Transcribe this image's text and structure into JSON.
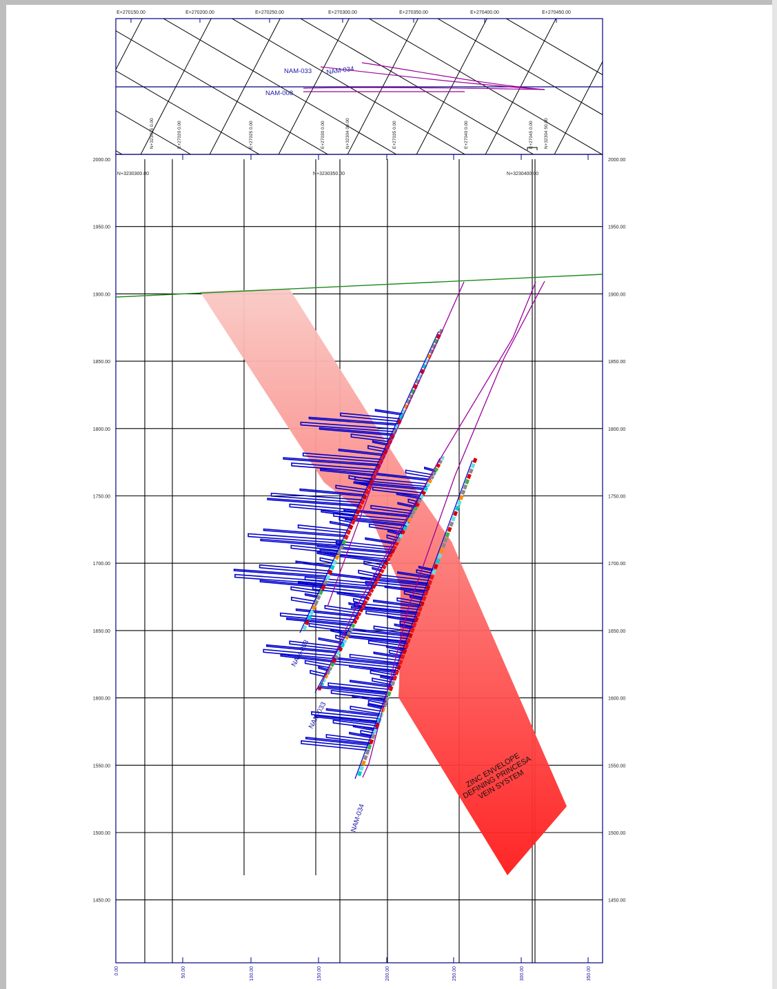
{
  "plan_view": {
    "easting_labels": [
      "E+270150.00",
      "E+270200.00",
      "E+270250.00",
      "E+270300.00",
      "E+270350.00",
      "E+270400.00",
      "E+270450.00"
    ],
    "grid_labels": [
      "N+323035 0.00",
      "E+27020 0.00",
      "E+27025 0.00",
      "E+27030 0.00",
      "N+32304 00.00",
      "E+27035 0.00",
      "E+27040 0.00",
      "E+27045 0.00",
      "N+32304 50.00"
    ],
    "hole_labels": [
      "NAM-033",
      "NAM-034",
      "NAM-008"
    ]
  },
  "section": {
    "elevation_labels": [
      "2000.00",
      "1950.00",
      "1900.00",
      "1850.00",
      "1800.00",
      "1750.00",
      "1700.00",
      "1650.00",
      "1600.00",
      "1550.00",
      "1500.00",
      "1450.00"
    ],
    "northing_labels": [
      "N+3230300.00",
      "N+3230350.00",
      "N+3230400.00"
    ],
    "distance_labels": [
      "0.00",
      "50.00",
      "100.00",
      "150.00",
      "200.00",
      "250.00",
      "300.00",
      "350.00"
    ],
    "hole_labels": [
      "NAM-008",
      "NAM-033",
      "NAM-034"
    ],
    "envelope_label": [
      "ZINC ENVELOPE",
      "DEFINING PRINCESA",
      "VEIN SYSTEM"
    ]
  },
  "colors": {
    "frame": "#000080",
    "grid": "#000000",
    "envelope_top": "#f9c9c4",
    "envelope_bottom": "#ff1a1a",
    "hole_trace": "#9c009c",
    "assay_bars": "#0000cc",
    "topography": "#1a8a1a"
  }
}
